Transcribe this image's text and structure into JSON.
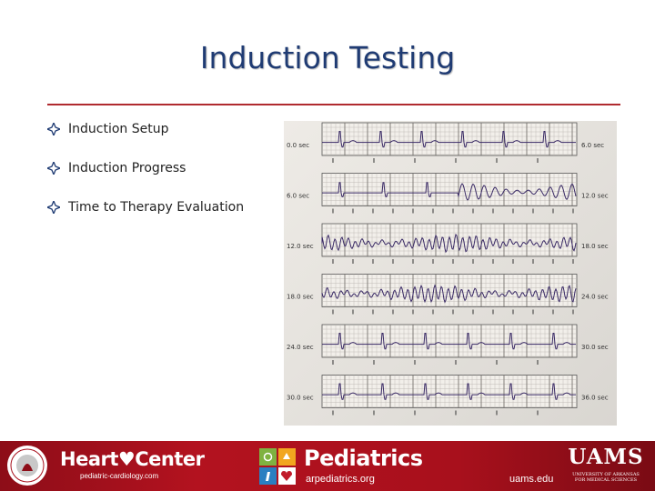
{
  "slide": {
    "title": "Induction Testing",
    "bullets": [
      "Induction Setup",
      "Induction Progress",
      "Time to Therapy Evaluation"
    ]
  },
  "ecg_strip": {
    "rows": [
      {
        "start": "0.0 sec",
        "end": "6.0 sec"
      },
      {
        "start": "6.0 sec",
        "end": "12.0 sec"
      },
      {
        "start": "12.0 sec",
        "end": "18.0 sec"
      },
      {
        "start": "18.0 sec",
        "end": "24.0 sec"
      },
      {
        "start": "24.0 sec",
        "end": "30.0 sec"
      },
      {
        "start": "30.0 sec",
        "end": "36.0 sec"
      }
    ]
  },
  "footer": {
    "heart_center": "Heart♥Center",
    "heart_center_url": "pediatric-cardiology.com",
    "pediatrics": "Pediatrics",
    "pediatrics_url": "arpediatrics.org",
    "uams_url": "uams.edu",
    "uams_logo": "UAMS",
    "uams_subtitle_1": "UNIVERSITY OF ARKANSAS",
    "uams_subtitle_2": "FOR MEDICAL SCIENCES"
  },
  "colors": {
    "title": "#1f3b73",
    "rule": "#b02a2f",
    "footer": "#a8101c",
    "trace": "#3a2a66"
  }
}
